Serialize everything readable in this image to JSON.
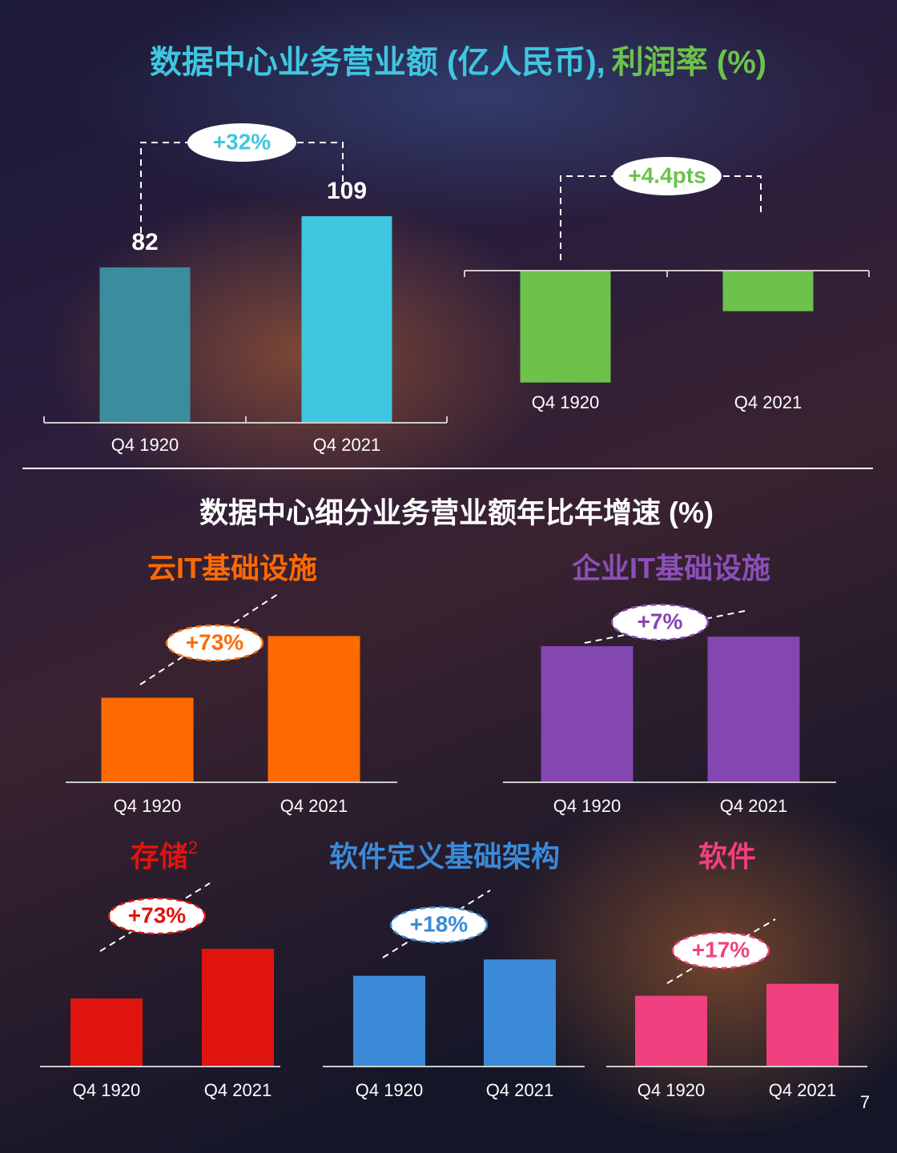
{
  "page_title_parts": [],
  "section_title": "数据中心细分业务营业额年比年增速 (%)",
  "page_number": "7",
  "chart_data": [
    {
      "type": "bar",
      "title": "数据中心业务营业额 (亿人民币),",
      "categories": [
        "Q4 1920",
        "Q4 2021"
      ],
      "values": [
        82,
        109
      ],
      "colors": [
        "#3b8c9c",
        "#3fc6e0"
      ],
      "title_color": "#3fc6e0",
      "ylim": [
        0,
        120
      ],
      "show_values": true,
      "annotation": "+32%",
      "annotation_color": "#3fc6e0"
    },
    {
      "type": "bar",
      "title": "利润率 (%)",
      "categories": [
        "Q4 1920",
        "Q4 2021"
      ],
      "values": [
        -6.9,
        -2.5
      ],
      "colors": [
        "#6cc24a",
        "#6cc24a"
      ],
      "title_color": "#6cc24a",
      "ylim": [
        -8,
        0
      ],
      "show_values": false,
      "annotation": "+4.4pts",
      "annotation_color": "#6cc24a"
    },
    {
      "type": "bar",
      "title": "云IT基础设施",
      "categories": [
        "Q4 1920",
        "Q4 2021"
      ],
      "values": [
        100,
        173
      ],
      "colors": [
        "#ff6a00",
        "#ff6a00"
      ],
      "title_color": "#ff6a00",
      "ylim": [
        0,
        180
      ],
      "show_values": false,
      "annotation": "+73%",
      "annotation_color": "#ff6a00"
    },
    {
      "type": "bar",
      "title": "企业IT基础设施",
      "categories": [
        "Q4 1920",
        "Q4 2021"
      ],
      "values": [
        100,
        107
      ],
      "colors": [
        "#8446b0",
        "#8446b0"
      ],
      "title_color": "#8c4fb8",
      "ylim": [
        0,
        110
      ],
      "show_values": false,
      "annotation": "+7%",
      "annotation_color": "#8446b0"
    },
    {
      "type": "bar",
      "title": "存储",
      "title_sup": "2",
      "categories": [
        "Q4 1920",
        "Q4 2021"
      ],
      "values": [
        100,
        173
      ],
      "colors": [
        "#e0140e",
        "#e0140e"
      ],
      "title_color": "#e0140e",
      "ylim": [
        0,
        180
      ],
      "show_values": false,
      "annotation": "+73%",
      "annotation_color": "#e0140e"
    },
    {
      "type": "bar",
      "title": "软件定义基础架构",
      "categories": [
        "Q4 1920",
        "Q4 2021"
      ],
      "values": [
        100,
        118
      ],
      "colors": [
        "#3a8ad8",
        "#3a8ad8"
      ],
      "title_color": "#3a8ad8",
      "ylim": [
        0,
        120
      ],
      "show_values": false,
      "annotation": "+18%",
      "annotation_color": "#3a8ad8"
    },
    {
      "type": "bar",
      "title": "软件",
      "categories": [
        "Q4 1920",
        "Q4 2021"
      ],
      "values": [
        100,
        117
      ],
      "colors": [
        "#f0407f",
        "#f0407f"
      ],
      "title_color": "#f0407f",
      "ylim": [
        0,
        120
      ],
      "show_values": false,
      "annotation": "+17%",
      "annotation_color": "#f0407f"
    }
  ]
}
